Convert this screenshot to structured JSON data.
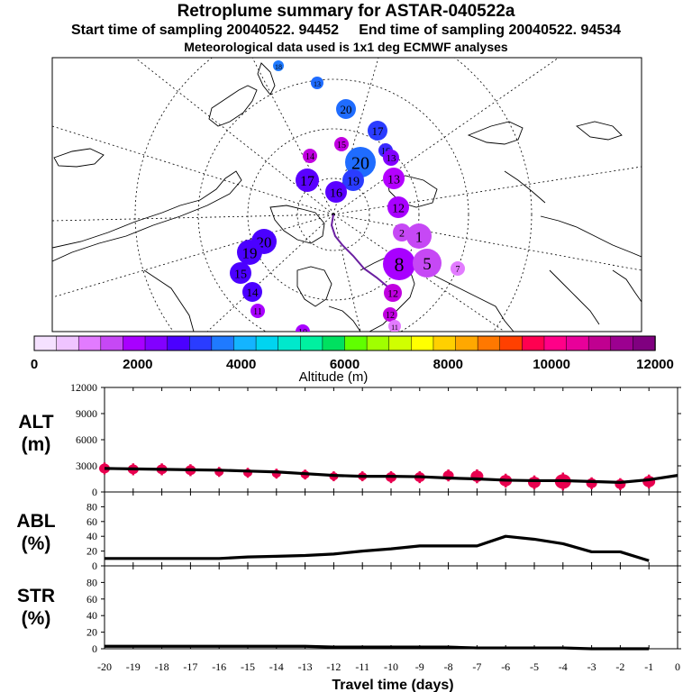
{
  "header": {
    "title": "Retroplume summary for ASTAR-040522a",
    "start_label": "Start time of sampling 20040522. 94452",
    "end_label": "End time of sampling 20040522. 94534",
    "met_label": "Meteorological data used is 1x1 deg ECMWF analyses"
  },
  "colorbar": {
    "label": "Altitude (m)",
    "ticks": [
      "0",
      "2000",
      "4000",
      "6000",
      "8000",
      "10000",
      "12000"
    ],
    "colors": [
      "#f5e1ff",
      "#efc4ff",
      "#e27bff",
      "#c648f5",
      "#a800ff",
      "#8200ff",
      "#4b00ff",
      "#2a3cff",
      "#1f7aff",
      "#14b4ff",
      "#00d4f0",
      "#00e8cc",
      "#00f0a0",
      "#00e060",
      "#60ff00",
      "#a0ff00",
      "#d0ff00",
      "#ffff00",
      "#ffd000",
      "#ffa800",
      "#ff7800",
      "#ff4000",
      "#ff0050",
      "#ff0088",
      "#e8009a",
      "#c00090",
      "#9c0090",
      "#800080"
    ]
  },
  "map": {
    "cluster_labels": [
      {
        "label": "20",
        "color": "#1f6cff"
      },
      {
        "label": "13",
        "color": "#1f6cff"
      },
      {
        "label": "18",
        "color": "#1f7aff"
      },
      {
        "label": "17",
        "color": "#2a3cff"
      },
      {
        "label": "16",
        "color": "#3a2aff"
      },
      {
        "label": "15",
        "color": "#c000e0"
      },
      {
        "label": "14",
        "color": "#c000e0"
      },
      {
        "label": "13",
        "color": "#8200ff"
      },
      {
        "label": "20",
        "color": "#1f6cff"
      },
      {
        "label": "19",
        "color": "#2a3cff"
      },
      {
        "label": "17",
        "color": "#5a00ff"
      },
      {
        "label": "16",
        "color": "#5a00ff"
      },
      {
        "label": "13",
        "color": "#b400ff"
      },
      {
        "label": "12",
        "color": "#a800ff"
      },
      {
        "label": "20",
        "color": "#4b00ff"
      },
      {
        "label": "19",
        "color": "#4b00ff"
      },
      {
        "label": "15",
        "color": "#4b00ff"
      },
      {
        "label": "14",
        "color": "#4b00ff"
      },
      {
        "label": "11",
        "color": "#a800ff"
      },
      {
        "label": "10",
        "color": "#a800ff"
      },
      {
        "label": "1",
        "color": "#c648f5"
      },
      {
        "label": "2",
        "color": "#c648f5"
      },
      {
        "label": "8",
        "color": "#a800ff"
      },
      {
        "label": "5",
        "color": "#c648f5"
      },
      {
        "label": "7",
        "color": "#e27bff"
      },
      {
        "label": "12",
        "color": "#c000e0"
      },
      {
        "label": "12",
        "color": "#c000e0"
      },
      {
        "label": "11",
        "color": "#e27bff"
      }
    ]
  },
  "panels": {
    "alt": {
      "label": "ALT",
      "unit": "(m)"
    },
    "abl": {
      "label": "ABL",
      "unit": "(%)"
    },
    "str": {
      "label": "STR",
      "unit": "(%)"
    },
    "xlabel": "Travel time (days)"
  },
  "chart_data": [
    {
      "type": "line",
      "title": "ALT",
      "ylabel": "(m)",
      "ylim": [
        0,
        12000
      ],
      "yticks": [
        0,
        3000,
        6000,
        9000,
        12000
      ],
      "x": [
        -20,
        -19,
        -18,
        -17,
        -16,
        -15,
        -14,
        -13,
        -12,
        -11,
        -10,
        -9,
        -8,
        -7,
        -6,
        -5,
        -4,
        -3,
        -2,
        -1,
        0
      ],
      "values": [
        2700,
        2650,
        2600,
        2550,
        2500,
        2400,
        2300,
        2100,
        1900,
        1800,
        1800,
        1750,
        1600,
        1500,
        1350,
        1300,
        1300,
        1200,
        1100,
        1400,
        1900
      ],
      "markers": [
        {
          "x": -20,
          "y": 2700,
          "r": 6
        },
        {
          "x": -19,
          "y": 2600,
          "r": 6
        },
        {
          "x": -18,
          "y": 2600,
          "r": 6
        },
        {
          "x": -17,
          "y": 2500,
          "r": 6
        },
        {
          "x": -16,
          "y": 2300,
          "r": 5
        },
        {
          "x": -15,
          "y": 2200,
          "r": 5
        },
        {
          "x": -14,
          "y": 2100,
          "r": 5
        },
        {
          "x": -13,
          "y": 2000,
          "r": 5
        },
        {
          "x": -12,
          "y": 1800,
          "r": 5
        },
        {
          "x": -11,
          "y": 1800,
          "r": 5
        },
        {
          "x": -10,
          "y": 1700,
          "r": 6
        },
        {
          "x": -9,
          "y": 1700,
          "r": 6
        },
        {
          "x": -8,
          "y": 1900,
          "r": 6
        },
        {
          "x": -7,
          "y": 1800,
          "r": 7
        },
        {
          "x": -6,
          "y": 1300,
          "r": 7
        },
        {
          "x": -5,
          "y": 1100,
          "r": 7
        },
        {
          "x": -4,
          "y": 1200,
          "r": 9
        },
        {
          "x": -3,
          "y": 1000,
          "r": 6
        },
        {
          "x": -2,
          "y": 900,
          "r": 6
        },
        {
          "x": -1,
          "y": 1200,
          "r": 7
        }
      ]
    },
    {
      "type": "line",
      "title": "ABL",
      "ylabel": "(%)",
      "ylim": [
        0,
        100
      ],
      "yticks": [
        0,
        20,
        40,
        60,
        80
      ],
      "x": [
        -20,
        -19,
        -18,
        -17,
        -16,
        -15,
        -14,
        -13,
        -12,
        -11,
        -10,
        -9,
        -8,
        -7,
        -6,
        -5,
        -4,
        -3,
        -2,
        -1
      ],
      "values": [
        10,
        10,
        10,
        10,
        10,
        12,
        13,
        14,
        16,
        20,
        23,
        27,
        27,
        27,
        40,
        36,
        30,
        19,
        19,
        7
      ]
    },
    {
      "type": "line",
      "title": "STR",
      "ylabel": "(%)",
      "ylim": [
        0,
        100
      ],
      "yticks": [
        0,
        20,
        40,
        60,
        80
      ],
      "xlabel": "Travel time (days)",
      "x": [
        -20,
        -19,
        -18,
        -17,
        -16,
        -15,
        -14,
        -13,
        -12,
        -11,
        -10,
        -9,
        -8,
        -7,
        -6,
        -5,
        -4,
        -3,
        -2,
        -1
      ],
      "values": [
        3,
        3,
        3,
        3,
        3,
        3,
        3,
        3,
        2,
        2,
        2,
        2,
        2,
        1,
        1,
        1,
        1,
        0,
        0,
        0
      ],
      "xticks": [
        "-20",
        "-19",
        "-18",
        "-17",
        "-16",
        "-15",
        "-14",
        "-13",
        "-12",
        "-11",
        "-10",
        "-9",
        "-8",
        "-7",
        "-6",
        "-5",
        "-4",
        "-3",
        "-2",
        "-1",
        "0"
      ]
    }
  ]
}
